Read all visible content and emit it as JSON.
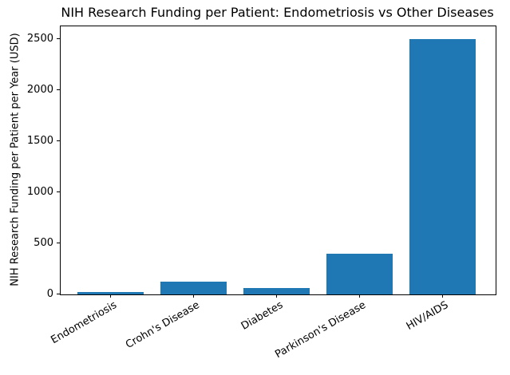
{
  "chart_data": {
    "type": "bar",
    "title": "NIH Research Funding per Patient: Endometriosis vs Other Diseases",
    "xlabel": "",
    "ylabel": "NIH Research Funding per Patient per Year (USD)",
    "categories": [
      "Endometriosis",
      "Crohn's Disease",
      "Diabetes",
      "Parkinson's Disease",
      "HIV/AIDS"
    ],
    "values": [
      20,
      125,
      60,
      400,
      2500
    ],
    "yticks": [
      0,
      500,
      1000,
      1500,
      2000,
      2500
    ],
    "ylim": [
      0,
      2625
    ],
    "bar_color": "#1f77b4",
    "axis_color": "#000000",
    "background_color": "#ffffff",
    "grid": false,
    "legend": "none",
    "x_tick_rotation_deg": 30
  }
}
